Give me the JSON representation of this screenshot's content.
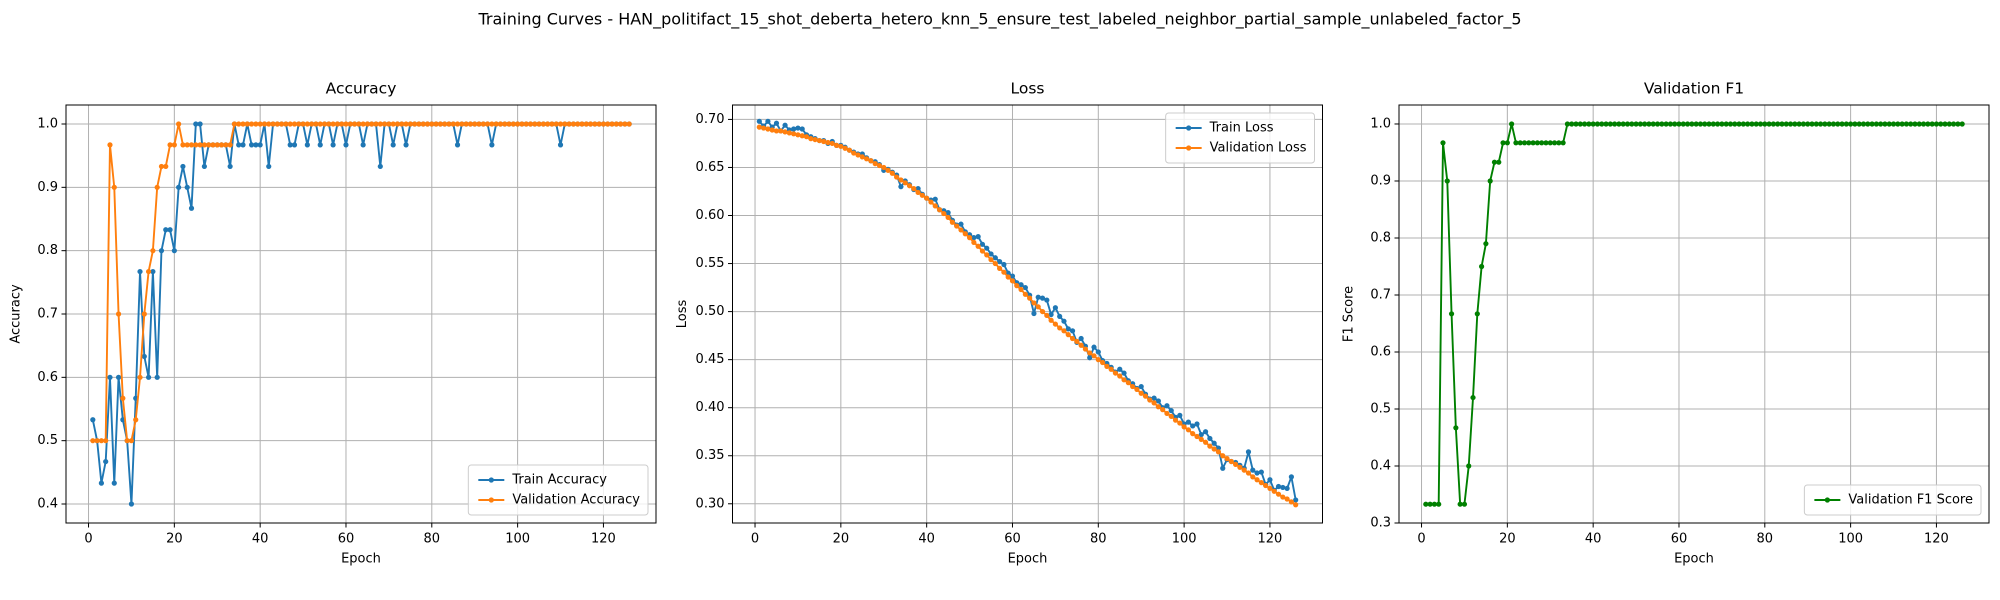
{
  "title": "Training Curves - HAN_politifact_15_shot_deberta_hetero_knn_5_ensure_test_labeled_neighbor_partial_sample_unlabeled_factor_5",
  "chart_data": [
    {
      "type": "line",
      "title": "Accuracy",
      "xlabel": "Epoch",
      "ylabel": "Accuracy",
      "x": [
        1,
        2,
        3,
        4,
        5,
        6,
        7,
        8,
        9,
        10,
        11,
        12,
        13,
        14,
        15,
        16,
        17,
        18,
        19,
        20,
        21,
        22,
        23,
        24,
        25,
        26,
        27,
        28,
        29,
        30,
        31,
        32,
        33,
        34,
        35,
        36,
        37,
        38,
        39,
        40,
        41,
        42,
        43,
        44,
        45,
        46,
        47,
        48,
        49,
        50,
        51,
        52,
        53,
        54,
        55,
        56,
        57,
        58,
        59,
        60,
        61,
        62,
        63,
        64,
        65,
        66,
        67,
        68,
        69,
        70,
        71,
        72,
        73,
        74,
        75,
        76,
        77,
        78,
        79,
        80,
        81,
        82,
        83,
        84,
        85,
        86,
        87,
        88,
        89,
        90,
        91,
        92,
        93,
        94,
        95,
        96,
        97,
        98,
        99,
        100,
        101,
        102,
        103,
        104,
        105,
        106,
        107,
        108,
        109,
        110,
        111,
        112,
        113,
        114,
        115,
        116,
        117,
        118,
        119,
        120,
        121,
        122,
        123,
        124,
        125,
        126
      ],
      "series": [
        {
          "name": "Train Accuracy",
          "color": "#1f77b4",
          "values": [
            0.533,
            0.5,
            0.433,
            0.467,
            0.6,
            0.433,
            0.6,
            0.533,
            0.5,
            0.4,
            0.567,
            0.767,
            0.633,
            0.6,
            0.767,
            0.6,
            0.8,
            0.833,
            0.833,
            0.8,
            0.9,
            0.933,
            0.9,
            0.867,
            1,
            1,
            0.933,
            0.967,
            0.967,
            0.967,
            0.967,
            0.967,
            0.933,
            1,
            0.967,
            0.967,
            1,
            0.967,
            0.967,
            0.967,
            1,
            0.933,
            1,
            1,
            1,
            1,
            0.967,
            0.967,
            1,
            1,
            0.967,
            1,
            1,
            0.967,
            1,
            1,
            0.967,
            1,
            1,
            0.967,
            1,
            1,
            1,
            0.967,
            1,
            1,
            1,
            0.933,
            1,
            1,
            0.967,
            1,
            1,
            0.967,
            1,
            1,
            1,
            1,
            1,
            1,
            1,
            1,
            1,
            1,
            1,
            0.967,
            1,
            1,
            1,
            1,
            1,
            1,
            1,
            0.967,
            1,
            1,
            1,
            1,
            1,
            1,
            1,
            1,
            1,
            1,
            1,
            1,
            1,
            1,
            1,
            0.967,
            1,
            1,
            1,
            1,
            1,
            1,
            1,
            1,
            1,
            1,
            1,
            1,
            1,
            1,
            1,
            1
          ]
        },
        {
          "name": "Validation Accuracy",
          "color": "#ff7f0e",
          "values": [
            0.5,
            0.5,
            0.5,
            0.5,
            0.967,
            0.9,
            0.7,
            0.567,
            0.5,
            0.5,
            0.533,
            0.6,
            0.7,
            0.767,
            0.8,
            0.9,
            0.933,
            0.933,
            0.967,
            0.967,
            1,
            0.967,
            0.967,
            0.967,
            0.967,
            0.967,
            0.967,
            0.967,
            0.967,
            0.967,
            0.967,
            0.967,
            0.967,
            1,
            1,
            1,
            1,
            1,
            1,
            1,
            1,
            1,
            1,
            1,
            1,
            1,
            1,
            1,
            1,
            1,
            1,
            1,
            1,
            1,
            1,
            1,
            1,
            1,
            1,
            1,
            1,
            1,
            1,
            1,
            1,
            1,
            1,
            1,
            1,
            1,
            1,
            1,
            1,
            1,
            1,
            1,
            1,
            1,
            1,
            1,
            1,
            1,
            1,
            1,
            1,
            1,
            1,
            1,
            1,
            1,
            1,
            1,
            1,
            1,
            1,
            1,
            1,
            1,
            1,
            1,
            1,
            1,
            1,
            1,
            1,
            1,
            1,
            1,
            1,
            1,
            1,
            1,
            1,
            1,
            1,
            1,
            1,
            1,
            1,
            1,
            1,
            1,
            1,
            1,
            1,
            1
          ]
        }
      ],
      "xlim": [
        -5.25,
        132.25
      ],
      "xticks": [
        0,
        20,
        40,
        60,
        80,
        100,
        120
      ],
      "ylim": [
        0.37,
        1.03
      ],
      "yticks": [
        0.4,
        0.5,
        0.6,
        0.7,
        0.8,
        0.9,
        {
          "value": 1,
          "label": "1.0"
        }
      ],
      "grid": true,
      "legend": "lower right"
    },
    {
      "type": "line",
      "title": "Loss",
      "xlabel": "Epoch",
      "ylabel": "Loss",
      "x": [
        1,
        2,
        3,
        4,
        5,
        6,
        7,
        8,
        9,
        10,
        11,
        12,
        13,
        14,
        15,
        16,
        17,
        18,
        19,
        20,
        21,
        22,
        23,
        24,
        25,
        26,
        27,
        28,
        29,
        30,
        31,
        32,
        33,
        34,
        35,
        36,
        37,
        38,
        39,
        40,
        41,
        42,
        43,
        44,
        45,
        46,
        47,
        48,
        49,
        50,
        51,
        52,
        53,
        54,
        55,
        56,
        57,
        58,
        59,
        60,
        61,
        62,
        63,
        64,
        65,
        66,
        67,
        68,
        69,
        70,
        71,
        72,
        73,
        74,
        75,
        76,
        77,
        78,
        79,
        80,
        81,
        82,
        83,
        84,
        85,
        86,
        87,
        88,
        89,
        90,
        91,
        92,
        93,
        94,
        95,
        96,
        97,
        98,
        99,
        100,
        101,
        102,
        103,
        104,
        105,
        106,
        107,
        108,
        109,
        110,
        111,
        112,
        113,
        114,
        115,
        116,
        117,
        118,
        119,
        120,
        121,
        122,
        123,
        124,
        125,
        126
      ],
      "series": [
        {
          "name": "Train Loss",
          "color": "#1f77b4",
          "values": [
            0.698,
            0.693,
            0.698,
            0.692,
            0.696,
            0.688,
            0.694,
            0.689,
            0.69,
            0.691,
            0.69,
            0.684,
            0.682,
            0.68,
            0.678,
            0.678,
            0.675,
            0.677,
            0.673,
            0.673,
            0.671,
            0.668,
            0.666,
            0.664,
            0.664,
            0.66,
            0.657,
            0.656,
            0.653,
            0.647,
            0.648,
            0.645,
            0.642,
            0.63,
            0.636,
            0.632,
            0.627,
            0.628,
            0.622,
            0.618,
            0.616,
            0.617,
            0.606,
            0.605,
            0.603,
            0.595,
            0.59,
            0.591,
            0.583,
            0.58,
            0.577,
            0.578,
            0.57,
            0.566,
            0.56,
            0.556,
            0.552,
            0.549,
            0.54,
            0.537,
            0.53,
            0.528,
            0.525,
            0.517,
            0.498,
            0.515,
            0.514,
            0.512,
            0.497,
            0.504,
            0.495,
            0.49,
            0.482,
            0.48,
            0.468,
            0.472,
            0.464,
            0.452,
            0.463,
            0.458,
            0.449,
            0.446,
            0.442,
            0.437,
            0.44,
            0.436,
            0.428,
            0.425,
            0.42,
            0.422,
            0.414,
            0.409,
            0.41,
            0.407,
            0.4,
            0.402,
            0.397,
            0.39,
            0.392,
            0.383,
            0.385,
            0.381,
            0.383,
            0.372,
            0.375,
            0.368,
            0.363,
            0.358,
            0.337,
            0.346,
            0.344,
            0.343,
            0.34,
            0.337,
            0.354,
            0.335,
            0.332,
            0.333,
            0.32,
            0.325,
            0.314,
            0.318,
            0.317,
            0.316,
            0.328,
            0.304
          ]
        },
        {
          "name": "Validation Loss",
          "color": "#ff7f0e",
          "values": [
            0.692,
            0.691,
            0.69,
            0.689,
            0.688,
            0.688,
            0.687,
            0.686,
            0.685,
            0.684,
            0.683,
            0.682,
            0.68,
            0.679,
            0.678,
            0.677,
            0.676,
            0.675,
            0.673,
            0.672,
            0.67,
            0.668,
            0.665,
            0.663,
            0.661,
            0.659,
            0.657,
            0.654,
            0.652,
            0.65,
            0.647,
            0.644,
            0.64,
            0.637,
            0.634,
            0.631,
            0.628,
            0.624,
            0.621,
            0.618,
            0.614,
            0.61,
            0.606,
            0.602,
            0.598,
            0.593,
            0.589,
            0.585,
            0.581,
            0.577,
            0.572,
            0.568,
            0.563,
            0.559,
            0.554,
            0.55,
            0.545,
            0.541,
            0.536,
            0.532,
            0.527,
            0.523,
            0.518,
            0.514,
            0.509,
            0.505,
            0.5,
            0.496,
            0.491,
            0.487,
            0.483,
            0.48,
            0.476,
            0.472,
            0.469,
            0.465,
            0.461,
            0.457,
            0.454,
            0.45,
            0.447,
            0.443,
            0.44,
            0.436,
            0.433,
            0.429,
            0.426,
            0.422,
            0.419,
            0.415,
            0.412,
            0.408,
            0.405,
            0.401,
            0.398,
            0.394,
            0.391,
            0.387,
            0.384,
            0.38,
            0.377,
            0.373,
            0.37,
            0.367,
            0.364,
            0.36,
            0.357,
            0.354,
            0.35,
            0.347,
            0.344,
            0.341,
            0.338,
            0.335,
            0.332,
            0.328,
            0.325,
            0.322,
            0.319,
            0.316,
            0.313,
            0.31,
            0.307,
            0.305,
            0.302,
            0.299
          ]
        }
      ],
      "xlim": [
        -5.25,
        132.25
      ],
      "xticks": [
        0,
        20,
        40,
        60,
        80,
        100,
        120
      ],
      "ylim": [
        0.28,
        0.715
      ],
      "yticks": [
        {
          "value": 0.3,
          "label": "0.30"
        },
        0.35,
        {
          "value": 0.4,
          "label": "0.40"
        },
        0.45,
        {
          "value": 0.5,
          "label": "0.50"
        },
        0.55,
        {
          "value": 0.6,
          "label": "0.60"
        },
        0.65,
        {
          "value": 0.7,
          "label": "0.70"
        }
      ],
      "grid": true,
      "legend": "upper right"
    },
    {
      "type": "line",
      "title": "Validation F1",
      "xlabel": "Epoch",
      "ylabel": "F1 Score",
      "x": [
        1,
        2,
        3,
        4,
        5,
        6,
        7,
        8,
        9,
        10,
        11,
        12,
        13,
        14,
        15,
        16,
        17,
        18,
        19,
        20,
        21,
        22,
        23,
        24,
        25,
        26,
        27,
        28,
        29,
        30,
        31,
        32,
        33,
        34,
        35,
        36,
        37,
        38,
        39,
        40,
        41,
        42,
        43,
        44,
        45,
        46,
        47,
        48,
        49,
        50,
        51,
        52,
        53,
        54,
        55,
        56,
        57,
        58,
        59,
        60,
        61,
        62,
        63,
        64,
        65,
        66,
        67,
        68,
        69,
        70,
        71,
        72,
        73,
        74,
        75,
        76,
        77,
        78,
        79,
        80,
        81,
        82,
        83,
        84,
        85,
        86,
        87,
        88,
        89,
        90,
        91,
        92,
        93,
        94,
        95,
        96,
        97,
        98,
        99,
        100,
        101,
        102,
        103,
        104,
        105,
        106,
        107,
        108,
        109,
        110,
        111,
        112,
        113,
        114,
        115,
        116,
        117,
        118,
        119,
        120,
        121,
        122,
        123,
        124,
        125,
        126
      ],
      "series": [
        {
          "name": "Validation F1 Score",
          "color": "#008000",
          "values": [
            0.333,
            0.333,
            0.333,
            0.333,
            0.967,
            0.9,
            0.667,
            0.467,
            0.333,
            0.333,
            0.4,
            0.52,
            0.667,
            0.75,
            0.79,
            0.9,
            0.933,
            0.933,
            0.967,
            0.967,
            1,
            0.967,
            0.967,
            0.967,
            0.967,
            0.967,
            0.967,
            0.967,
            0.967,
            0.967,
            0.967,
            0.967,
            0.967,
            1,
            1,
            1,
            1,
            1,
            1,
            1,
            1,
            1,
            1,
            1,
            1,
            1,
            1,
            1,
            1,
            1,
            1,
            1,
            1,
            1,
            1,
            1,
            1,
            1,
            1,
            1,
            1,
            1,
            1,
            1,
            1,
            1,
            1,
            1,
            1,
            1,
            1,
            1,
            1,
            1,
            1,
            1,
            1,
            1,
            1,
            1,
            1,
            1,
            1,
            1,
            1,
            1,
            1,
            1,
            1,
            1,
            1,
            1,
            1,
            1,
            1,
            1,
            1,
            1,
            1,
            1,
            1,
            1,
            1,
            1,
            1,
            1,
            1,
            1,
            1,
            1,
            1,
            1,
            1,
            1,
            1,
            1,
            1,
            1,
            1,
            1,
            1,
            1,
            1,
            1,
            1,
            1
          ]
        }
      ],
      "xlim": [
        -5.25,
        132.25
      ],
      "xticks": [
        0,
        20,
        40,
        60,
        80,
        100,
        120
      ],
      "ylim": [
        0.3,
        1.0333
      ],
      "yticks": [
        0.3,
        0.4,
        0.5,
        0.6,
        0.7,
        0.8,
        0.9,
        {
          "value": 1,
          "label": "1.0"
        }
      ],
      "grid": true,
      "legend": "lower right"
    }
  ]
}
